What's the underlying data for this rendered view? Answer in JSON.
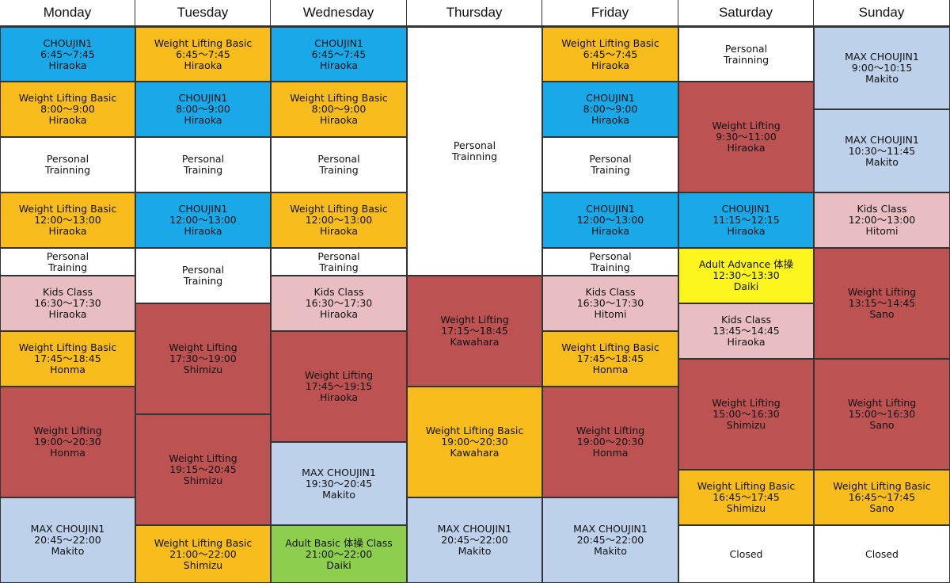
{
  "days": [
    {
      "name": "Monday",
      "blocks": [
        {
          "color": "blue",
          "lines": [
            "CHOUJIN1",
            "6:45〜7:45",
            "Hiraoka"
          ]
        },
        {
          "color": "orange",
          "lines": [
            "Weight Lifting Basic",
            "8:00〜9:00",
            "Hiraoka"
          ]
        },
        {
          "color": "white",
          "lines": [
            "Personal",
            "Trainning"
          ]
        },
        {
          "color": "orange",
          "lines": [
            "Weight Lifting Basic",
            "12:00〜13:00",
            "Hiraoka"
          ]
        },
        {
          "color": "white",
          "lines": [
            "Personal",
            "Training"
          ]
        },
        {
          "color": "pink",
          "lines": [
            "Kids Class",
            "16:30〜17:30",
            "Hiraoka"
          ]
        },
        {
          "color": "orange",
          "lines": [
            "Weight Lifting Basic",
            "17:45〜18:45",
            "Honma"
          ]
        },
        {
          "color": "red",
          "lines": [
            "Weight Lifting",
            "19:00〜20:30",
            "Honma"
          ]
        },
        {
          "color": "lightblue",
          "lines": [
            "MAX CHOUJIN1",
            "20:45〜22:00",
            "Makito"
          ]
        }
      ]
    },
    {
      "name": "Tuesday",
      "blocks": [
        {
          "color": "orange",
          "lines": [
            "Weight Lifting Basic",
            "6:45〜7:45",
            "Hiraoka"
          ]
        },
        {
          "color": "blue",
          "lines": [
            "CHOUJIN1",
            "8:00〜9:00",
            "Hiraoka"
          ]
        },
        {
          "color": "white",
          "lines": [
            "Personal",
            "Training"
          ]
        },
        {
          "color": "blue",
          "lines": [
            "CHOUJIN1",
            "12:00〜13:00",
            "Hiraoka"
          ]
        },
        {
          "color": "white",
          "lines": [
            "Personal",
            "Training"
          ]
        },
        {
          "color": "red",
          "lines": [
            "Weight Lifting",
            "17:30〜19:00",
            "Shimizu"
          ]
        },
        {
          "color": "red",
          "lines": [
            "Weight Lifting",
            "19:15〜20:45",
            "Shimizu"
          ]
        },
        {
          "color": "orange",
          "lines": [
            "Weight Lifting Basic",
            "21:00〜22:00",
            "Shimizu"
          ]
        }
      ]
    },
    {
      "name": "Wednesday",
      "blocks": [
        {
          "color": "blue",
          "lines": [
            "CHOUJIN1",
            "6:45〜7:45",
            "Hiraoka"
          ]
        },
        {
          "color": "orange",
          "lines": [
            "Weight Lifting Basic",
            "8:00〜9:00",
            "Hiraoka"
          ]
        },
        {
          "color": "white",
          "lines": [
            "Personal",
            "Training"
          ]
        },
        {
          "color": "orange",
          "lines": [
            "Weight Lifting Basic",
            "12:00〜13:00",
            "Hiraoka"
          ]
        },
        {
          "color": "white",
          "lines": [
            "Personal",
            "Training"
          ]
        },
        {
          "color": "pink",
          "lines": [
            "Kids Class",
            "16:30〜17:30",
            "Hiraoka"
          ]
        },
        {
          "color": "red",
          "lines": [
            "Weight Lifting",
            "17:45〜19:15",
            "Hiraoka"
          ]
        },
        {
          "color": "lightblue",
          "lines": [
            "MAX CHOUJIN1",
            "19:30〜20:45",
            "Makito"
          ]
        },
        {
          "color": "green",
          "lines": [
            "Adult Basic 体操 Class",
            "21:00〜22:00",
            "Daiki"
          ]
        }
      ]
    },
    {
      "name": "Thursday",
      "blocks": [
        {
          "color": "white",
          "lines": [
            "Personal",
            "Trainning"
          ]
        },
        {
          "color": "red",
          "lines": [
            "Weight Lifting",
            "17:15〜18:45",
            "Kawahara"
          ]
        },
        {
          "color": "orange",
          "lines": [
            "Weight Lifting Basic",
            "19:00〜20:30",
            "Kawahara"
          ]
        },
        {
          "color": "lightblue",
          "lines": [
            "MAX CHOUJIN1",
            "20:45〜22:00",
            "Makito"
          ]
        }
      ]
    },
    {
      "name": "Friday",
      "blocks": [
        {
          "color": "orange",
          "lines": [
            "Weight Lifting Basic",
            "6:45〜7:45",
            "Hiraoka"
          ]
        },
        {
          "color": "blue",
          "lines": [
            "CHOUJIN1",
            "8:00〜9:00",
            "Hiraoka"
          ]
        },
        {
          "color": "white",
          "lines": [
            "Personal",
            "Training"
          ]
        },
        {
          "color": "blue",
          "lines": [
            "CHOUJIN1",
            "12:00〜13:00",
            "Hiraoka"
          ]
        },
        {
          "color": "white",
          "lines": [
            "Personal",
            "Training"
          ]
        },
        {
          "color": "pink",
          "lines": [
            "Kids Class",
            "16:30〜17:30",
            "Hitomi"
          ]
        },
        {
          "color": "orange",
          "lines": [
            "Weight Lifting Basic",
            "17:45〜18:45",
            "Honma"
          ]
        },
        {
          "color": "red",
          "lines": [
            "Weight Lifting",
            "19:00〜20:30",
            "Honma"
          ]
        },
        {
          "color": "lightblue",
          "lines": [
            "MAX CHOUJIN1",
            "20:45〜22:00",
            "Makito"
          ]
        }
      ]
    },
    {
      "name": "Saturday",
      "blocks": [
        {
          "color": "white",
          "lines": [
            "Personal",
            "Trainning"
          ]
        },
        {
          "color": "red",
          "lines": [
            "Weight Lifting",
            "9:30〜11:00",
            "Hiraoka"
          ]
        },
        {
          "color": "blue",
          "lines": [
            "CHOUJIN1",
            "11:15〜12:15",
            "Hiraoka"
          ]
        },
        {
          "color": "yellow",
          "lines": [
            "Adult Advance 体操",
            "12:30〜13:30",
            "Daiki"
          ]
        },
        {
          "color": "pink",
          "lines": [
            "Kids Class",
            "13:45〜14:45",
            "Hiraoka"
          ]
        },
        {
          "color": "red",
          "lines": [
            "Weight Lifting",
            "15:00〜16:30",
            "Shimizu"
          ]
        },
        {
          "color": "orange",
          "lines": [
            "Weight Lifting Basic",
            "16:45〜17:45",
            "Shimizu"
          ]
        },
        {
          "color": "white",
          "lines": [
            "Closed"
          ]
        }
      ]
    },
    {
      "name": "Sunday",
      "blocks": [
        {
          "color": "lightblue",
          "lines": [
            "MAX CHOUJIN1",
            "9:00〜10:15",
            "Makito"
          ]
        },
        {
          "color": "lightblue",
          "lines": [
            "MAX CHOUJIN1",
            "10:30〜11:45",
            "Makito"
          ]
        },
        {
          "color": "pink",
          "lines": [
            "Kids Class",
            "12:00〜13:00",
            "Hitomi"
          ]
        },
        {
          "color": "red",
          "lines": [
            "Weight Lifting",
            "13:15〜14:45",
            "Sano"
          ]
        },
        {
          "color": "red",
          "lines": [
            "Weight Lifting",
            "15:00〜16:30",
            "Sano"
          ]
        },
        {
          "color": "orange",
          "lines": [
            "Weight Lifting Basic",
            "16:45〜17:45",
            "Sano"
          ]
        },
        {
          "color": "white",
          "lines": [
            "Closed"
          ]
        }
      ]
    }
  ]
}
